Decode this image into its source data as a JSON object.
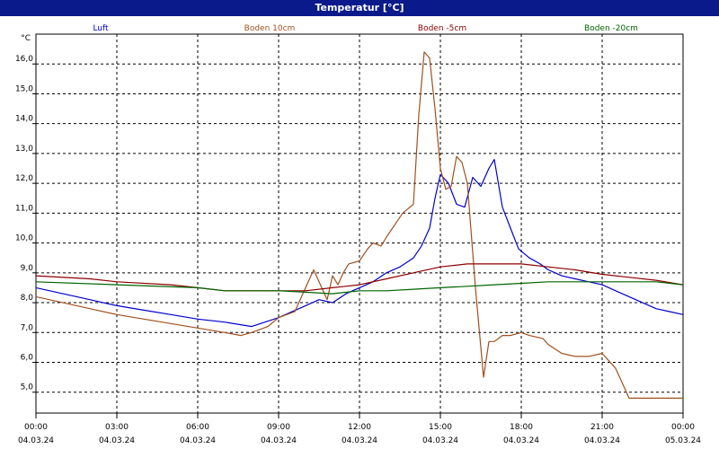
{
  "window": {
    "title": "Temperatur [°C]"
  },
  "chart_data": {
    "type": "line",
    "ylabel": "°C",
    "ylim": [
      4.3,
      17.0
    ],
    "xlim": [
      0,
      24
    ],
    "grid": true,
    "y_ticks": [
      "5,0",
      "6,0",
      "7,0",
      "8,0",
      "9,0",
      "10,0",
      "11,0",
      "12,0",
      "13,0",
      "14,0",
      "15,0",
      "16,0"
    ],
    "y_tick_values": [
      5,
      6,
      7,
      8,
      9,
      10,
      11,
      12,
      13,
      14,
      15,
      16
    ],
    "x_ticks": [
      {
        "time": "00:00",
        "date": "04.03.24"
      },
      {
        "time": "03:00",
        "date": "04.03.24"
      },
      {
        "time": "06:00",
        "date": "04.03.24"
      },
      {
        "time": "09:00",
        "date": "04.03.24"
      },
      {
        "time": "12:00",
        "date": "04.03.24"
      },
      {
        "time": "15:00",
        "date": "04.03.24"
      },
      {
        "time": "18:00",
        "date": "04.03.24"
      },
      {
        "time": "21:00",
        "date": "04.03.24"
      },
      {
        "time": "00:00",
        "date": "05.03.24"
      }
    ],
    "x_tick_values": [
      0,
      3,
      6,
      9,
      12,
      15,
      18,
      21,
      24
    ],
    "series": [
      {
        "name": "Luft",
        "color": "#0000cc",
        "x": [
          0,
          1,
          2,
          3,
          4,
          5,
          6,
          7,
          8,
          9,
          10,
          10.5,
          11,
          11.5,
          12,
          12.5,
          13,
          13.5,
          14,
          14.3,
          14.6,
          14.8,
          15,
          15.3,
          15.6,
          15.9,
          16.2,
          16.5,
          16.8,
          17,
          17.3,
          17.6,
          17.9,
          18.3,
          18.7,
          19,
          19.5,
          20,
          20.5,
          21,
          21.5,
          22,
          22.5,
          23,
          23.5,
          24
        ],
        "values": [
          8.5,
          8.3,
          8.1,
          7.9,
          7.75,
          7.6,
          7.45,
          7.35,
          7.2,
          7.5,
          7.9,
          8.1,
          8.0,
          8.3,
          8.5,
          8.7,
          9.0,
          9.2,
          9.5,
          9.9,
          10.5,
          11.5,
          12.3,
          12.0,
          11.3,
          11.2,
          12.2,
          11.9,
          12.5,
          12.8,
          11.2,
          10.5,
          9.8,
          9.5,
          9.3,
          9.1,
          8.9,
          8.8,
          8.7,
          8.6,
          8.4,
          8.2,
          8.0,
          7.8,
          7.7,
          7.6
        ]
      },
      {
        "name": "Boden 10cm",
        "color": "#a0501e",
        "x": [
          0,
          1,
          2,
          3,
          4,
          5,
          6,
          7,
          7.6,
          8,
          8.6,
          9,
          9.6,
          10,
          10.3,
          10.8,
          11,
          11.2,
          11.4,
          11.6,
          12,
          12.3,
          12.5,
          12.8,
          13,
          13.3,
          13.6,
          14,
          14.2,
          14.4,
          14.6,
          14.8,
          15,
          15.2,
          15.4,
          15.6,
          15.8,
          16,
          16.3,
          16.6,
          16.8,
          17,
          17.3,
          17.6,
          18,
          18.3,
          18.8,
          19,
          19.5,
          20,
          20.5,
          21,
          21.5,
          22,
          22.5,
          23,
          23.5,
          24
        ],
        "values": [
          8.2,
          8.0,
          7.8,
          7.6,
          7.45,
          7.3,
          7.15,
          7.0,
          6.9,
          7.0,
          7.2,
          7.5,
          7.7,
          8.5,
          9.1,
          8.1,
          8.9,
          8.6,
          9.0,
          9.3,
          9.4,
          9.8,
          10.0,
          9.9,
          10.2,
          10.6,
          11.0,
          11.3,
          14.3,
          16.4,
          16.2,
          14.5,
          12.5,
          11.8,
          11.9,
          12.9,
          12.7,
          12.0,
          8.5,
          5.5,
          6.7,
          6.7,
          6.9,
          6.9,
          7.0,
          6.9,
          6.8,
          6.6,
          6.3,
          6.2,
          6.2,
          6.3,
          5.8,
          4.8,
          4.8,
          4.8,
          4.8,
          4.8
        ]
      },
      {
        "name": "Boden -5cm",
        "color": "#8b0000",
        "x": [
          0,
          2,
          3,
          5,
          6,
          7,
          8,
          9,
          10,
          11,
          12,
          13,
          14,
          15,
          16,
          17,
          18,
          19,
          20,
          21,
          22,
          23,
          24
        ],
        "values": [
          8.9,
          8.8,
          8.7,
          8.6,
          8.5,
          8.4,
          8.4,
          8.4,
          8.4,
          8.5,
          8.6,
          8.8,
          9.0,
          9.2,
          9.3,
          9.3,
          9.3,
          9.2,
          9.1,
          8.95,
          8.85,
          8.75,
          8.6
        ]
      },
      {
        "name": "Boden -20cm",
        "color": "#006400",
        "x": [
          0,
          3,
          6,
          7,
          9,
          10,
          11,
          12,
          13,
          14,
          15,
          16,
          17,
          18,
          19,
          20,
          21,
          22,
          23,
          24
        ],
        "values": [
          8.7,
          8.6,
          8.5,
          8.4,
          8.4,
          8.35,
          8.3,
          8.4,
          8.4,
          8.45,
          8.5,
          8.55,
          8.6,
          8.65,
          8.7,
          8.7,
          8.7,
          8.7,
          8.7,
          8.6
        ]
      }
    ]
  }
}
